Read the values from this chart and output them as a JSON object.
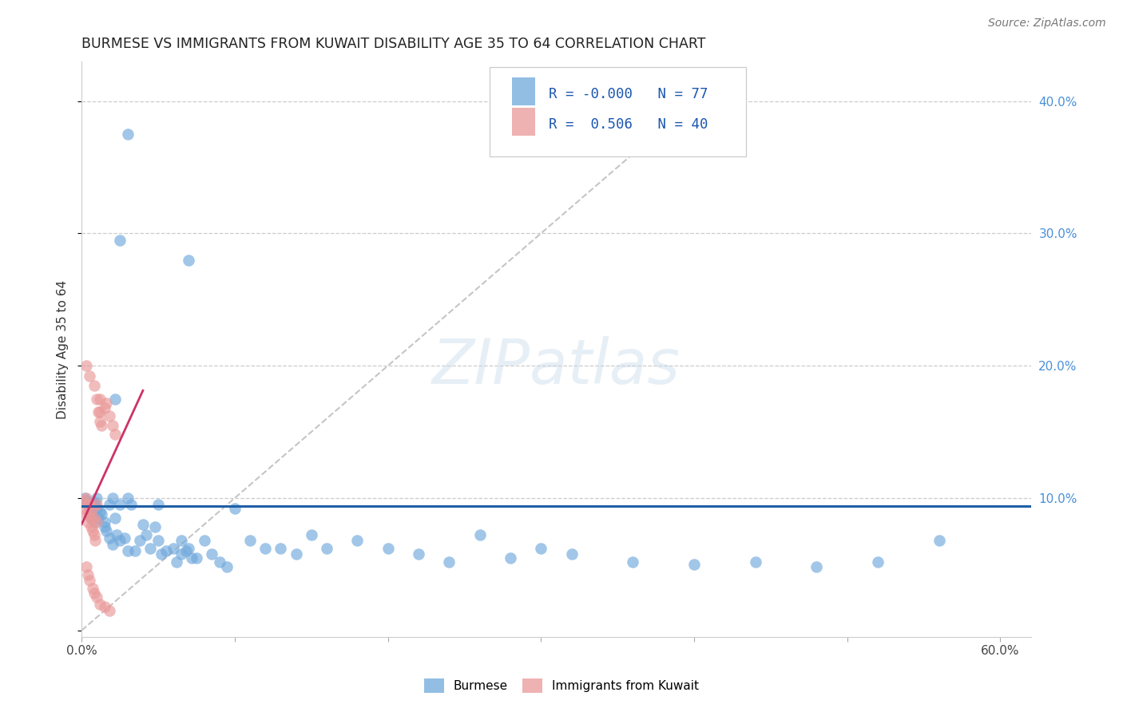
{
  "title": "BURMESE VS IMMIGRANTS FROM KUWAIT DISABILITY AGE 35 TO 64 CORRELATION CHART",
  "source": "Source: ZipAtlas.com",
  "ylabel": "Disability Age 35 to 64",
  "xlim": [
    0.0,
    0.62
  ],
  "ylim": [
    -0.005,
    0.43
  ],
  "blue_color": "#6fa8dc",
  "pink_color": "#ea9999",
  "blue_line_color": "#1f5fa6",
  "pink_line_color": "#cc3366",
  "ref_line_color": "#bbbbbb",
  "legend_R_blue": "-0.000",
  "legend_N_blue": "77",
  "legend_R_pink": "0.506",
  "legend_N_pink": "40",
  "watermark_text": "ZIPatlas",
  "figsize": [
    14.06,
    8.92
  ],
  "dpi": 100,
  "blue_x": [
    0.002,
    0.003,
    0.004,
    0.005,
    0.005,
    0.006,
    0.007,
    0.008,
    0.008,
    0.009,
    0.01,
    0.01,
    0.011,
    0.012,
    0.013,
    0.015,
    0.015,
    0.016,
    0.018,
    0.018,
    0.02,
    0.02,
    0.022,
    0.023,
    0.025,
    0.025,
    0.028,
    0.03,
    0.03,
    0.032,
    0.035,
    0.038,
    0.04,
    0.042,
    0.045,
    0.048,
    0.05,
    0.05,
    0.052,
    0.055,
    0.06,
    0.062,
    0.065,
    0.065,
    0.068,
    0.07,
    0.072,
    0.075,
    0.08,
    0.085,
    0.09,
    0.095,
    0.1,
    0.11,
    0.12,
    0.13,
    0.14,
    0.15,
    0.16,
    0.18,
    0.2,
    0.22,
    0.24,
    0.26,
    0.28,
    0.3,
    0.32,
    0.36,
    0.4,
    0.44,
    0.48,
    0.52,
    0.56,
    0.07,
    0.022,
    0.025,
    0.03
  ],
  "blue_y": [
    0.1,
    0.098,
    0.095,
    0.088,
    0.092,
    0.085,
    0.09,
    0.082,
    0.097,
    0.095,
    0.092,
    0.1,
    0.085,
    0.09,
    0.088,
    0.078,
    0.082,
    0.075,
    0.07,
    0.095,
    0.065,
    0.1,
    0.085,
    0.072,
    0.095,
    0.068,
    0.07,
    0.1,
    0.06,
    0.095,
    0.06,
    0.068,
    0.08,
    0.072,
    0.062,
    0.078,
    0.068,
    0.095,
    0.058,
    0.06,
    0.062,
    0.052,
    0.068,
    0.058,
    0.06,
    0.062,
    0.055,
    0.055,
    0.068,
    0.058,
    0.052,
    0.048,
    0.092,
    0.068,
    0.062,
    0.062,
    0.058,
    0.072,
    0.062,
    0.068,
    0.062,
    0.058,
    0.052,
    0.072,
    0.055,
    0.062,
    0.058,
    0.052,
    0.05,
    0.052,
    0.048,
    0.052,
    0.068,
    0.28,
    0.175,
    0.295,
    0.375
  ],
  "pink_x": [
    0.001,
    0.002,
    0.003,
    0.003,
    0.004,
    0.004,
    0.005,
    0.005,
    0.006,
    0.006,
    0.007,
    0.007,
    0.008,
    0.008,
    0.009,
    0.01,
    0.01,
    0.011,
    0.012,
    0.012,
    0.013,
    0.015,
    0.016,
    0.018,
    0.02,
    0.022,
    0.003,
    0.005,
    0.008,
    0.01,
    0.012,
    0.003,
    0.004,
    0.005,
    0.007,
    0.008,
    0.01,
    0.012,
    0.015,
    0.018
  ],
  "pink_y": [
    0.098,
    0.092,
    0.1,
    0.088,
    0.082,
    0.095,
    0.088,
    0.095,
    0.078,
    0.085,
    0.075,
    0.092,
    0.072,
    0.085,
    0.068,
    0.095,
    0.082,
    0.165,
    0.158,
    0.175,
    0.155,
    0.168,
    0.172,
    0.162,
    0.155,
    0.148,
    0.2,
    0.192,
    0.185,
    0.175,
    0.165,
    0.048,
    0.042,
    0.038,
    0.032,
    0.028,
    0.025,
    0.02,
    0.018,
    0.015
  ]
}
